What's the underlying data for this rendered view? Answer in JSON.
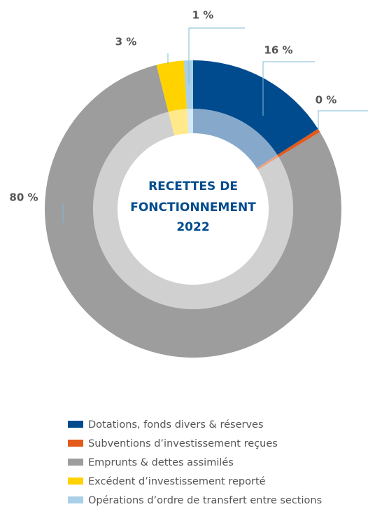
{
  "chart_data": {
    "type": "donut",
    "title": [
      "RECETTES DE",
      "FONCTIONNEMENT",
      "2022"
    ],
    "categories": [
      "Dotations, fonds divers & réserves",
      "Subventions d’investissement reçues",
      "Emprunts & dettes assimilés",
      "Excédent d’investissement reporté",
      "Opérations d’ordre de transfert entre sections"
    ],
    "values": [
      16,
      0.4,
      80,
      3,
      1
    ],
    "value_labels": [
      "16 %",
      "0 %",
      "80 %",
      "3 %",
      "1 %"
    ],
    "colors": [
      "#004b8d",
      "#e35a1a",
      "#9d9d9d",
      "#ffd200",
      "#a9cfe9"
    ],
    "inner_colors": [
      "#86a9cb",
      "#f0a080",
      "#d0d0d0",
      "#ffe98a",
      "#d6e9f6"
    ],
    "legend": "bottom"
  }
}
